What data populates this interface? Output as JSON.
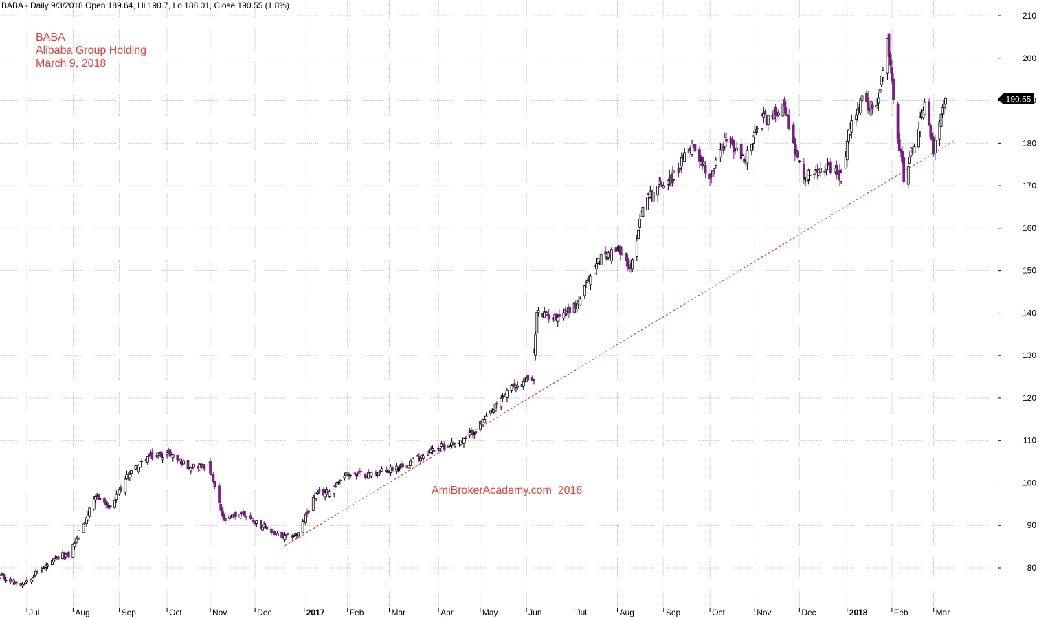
{
  "header": "BABA - Daily 9/3/2018 Open 189.64, Hi 190.7, Lo 188.01, Close 190.55 (1.8%)",
  "title_lines": [
    "BABA",
    "Alibaba Group Holding",
    "March 9, 2018"
  ],
  "watermark": "AmiBrokerAcademy.com  2018",
  "price_tag": "190.55",
  "colors": {
    "up": "#000000",
    "down": "#7a1f86",
    "grid": "#b8b8b8",
    "trend": "#e33b3b",
    "text": "#e0403a"
  },
  "chart_data": {
    "type": "candlestick",
    "ylim": [
      72,
      211
    ],
    "y_ticks": [
      80,
      90,
      100,
      110,
      120,
      130,
      140,
      150,
      160,
      170,
      180,
      190,
      200,
      210
    ],
    "x_tick_labels": [
      "Jul",
      "Aug",
      "Sep",
      "Oct",
      "Nov",
      "Dec",
      "2017",
      "Feb",
      "Mar",
      "Apr",
      "May",
      "Jun",
      "Jul",
      "Aug",
      "Sep",
      "Oct",
      "Nov",
      "Dec",
      "2018",
      "Feb",
      "Mar"
    ],
    "x_tick_dates": [
      "2016-07-01",
      "2016-08-01",
      "2016-09-01",
      "2016-10-03",
      "2016-11-01",
      "2016-12-01",
      "2017-01-03",
      "2017-02-01",
      "2017-03-01",
      "2017-04-03",
      "2017-05-01",
      "2017-06-01",
      "2017-07-03",
      "2017-08-01",
      "2017-09-01",
      "2017-10-02",
      "2017-11-01",
      "2017-12-01",
      "2018-01-02",
      "2018-02-01",
      "2018-03-01"
    ],
    "x_range": [
      "2016-06-13",
      "2018-04-13"
    ],
    "last_close": 190.55,
    "close_path": [
      [
        "2016-06-13",
        78
      ],
      [
        "2016-06-27",
        76
      ],
      [
        "2016-07-08",
        79
      ],
      [
        "2016-07-25",
        83
      ],
      [
        "2016-07-29",
        83
      ],
      [
        "2016-08-10",
        92
      ],
      [
        "2016-08-17",
        97
      ],
      [
        "2016-08-26",
        94
      ],
      [
        "2016-09-07",
        102
      ],
      [
        "2016-09-20",
        106
      ],
      [
        "2016-10-04",
        107
      ],
      [
        "2016-10-17",
        104
      ],
      [
        "2016-10-31",
        104
      ],
      [
        "2016-11-10",
        91
      ],
      [
        "2016-11-22",
        93
      ],
      [
        "2016-12-05",
        90
      ],
      [
        "2016-12-19",
        87
      ],
      [
        "2016-12-30",
        88
      ],
      [
        "2017-01-10",
        97
      ],
      [
        "2017-01-20",
        98
      ],
      [
        "2017-01-30",
        102
      ],
      [
        "2017-02-15",
        102
      ],
      [
        "2017-02-28",
        103
      ],
      [
        "2017-03-15",
        105
      ],
      [
        "2017-03-31",
        108
      ],
      [
        "2017-04-20",
        110
      ],
      [
        "2017-05-05",
        115
      ],
      [
        "2017-05-20",
        122
      ],
      [
        "2017-06-05",
        125
      ],
      [
        "2017-06-08",
        140
      ],
      [
        "2017-06-20",
        139
      ],
      [
        "2017-07-05",
        142
      ],
      [
        "2017-07-20",
        153
      ],
      [
        "2017-08-04",
        155
      ],
      [
        "2017-08-10",
        150
      ],
      [
        "2017-08-18",
        166
      ],
      [
        "2017-08-28",
        170
      ],
      [
        "2017-09-08",
        172
      ],
      [
        "2017-09-20",
        180
      ],
      [
        "2017-10-02",
        172
      ],
      [
        "2017-10-12",
        181
      ],
      [
        "2017-10-25",
        176
      ],
      [
        "2017-11-06",
        186
      ],
      [
        "2017-11-13",
        186
      ],
      [
        "2017-11-20",
        190
      ],
      [
        "2017-11-30",
        176
      ],
      [
        "2017-12-05",
        172
      ],
      [
        "2017-12-15",
        175
      ],
      [
        "2017-12-29",
        172
      ],
      [
        "2018-01-05",
        186
      ],
      [
        "2018-01-12",
        190
      ],
      [
        "2018-01-22",
        188
      ],
      [
        "2018-01-29",
        204
      ],
      [
        "2018-02-05",
        182
      ],
      [
        "2018-02-09",
        172
      ],
      [
        "2018-02-16",
        180
      ],
      [
        "2018-02-23",
        190
      ],
      [
        "2018-03-01",
        178
      ],
      [
        "2018-03-09",
        190.55
      ]
    ],
    "trendline": [
      [
        "2016-12-21",
        85.2
      ],
      [
        "2018-03-15",
        180.6
      ]
    ]
  }
}
